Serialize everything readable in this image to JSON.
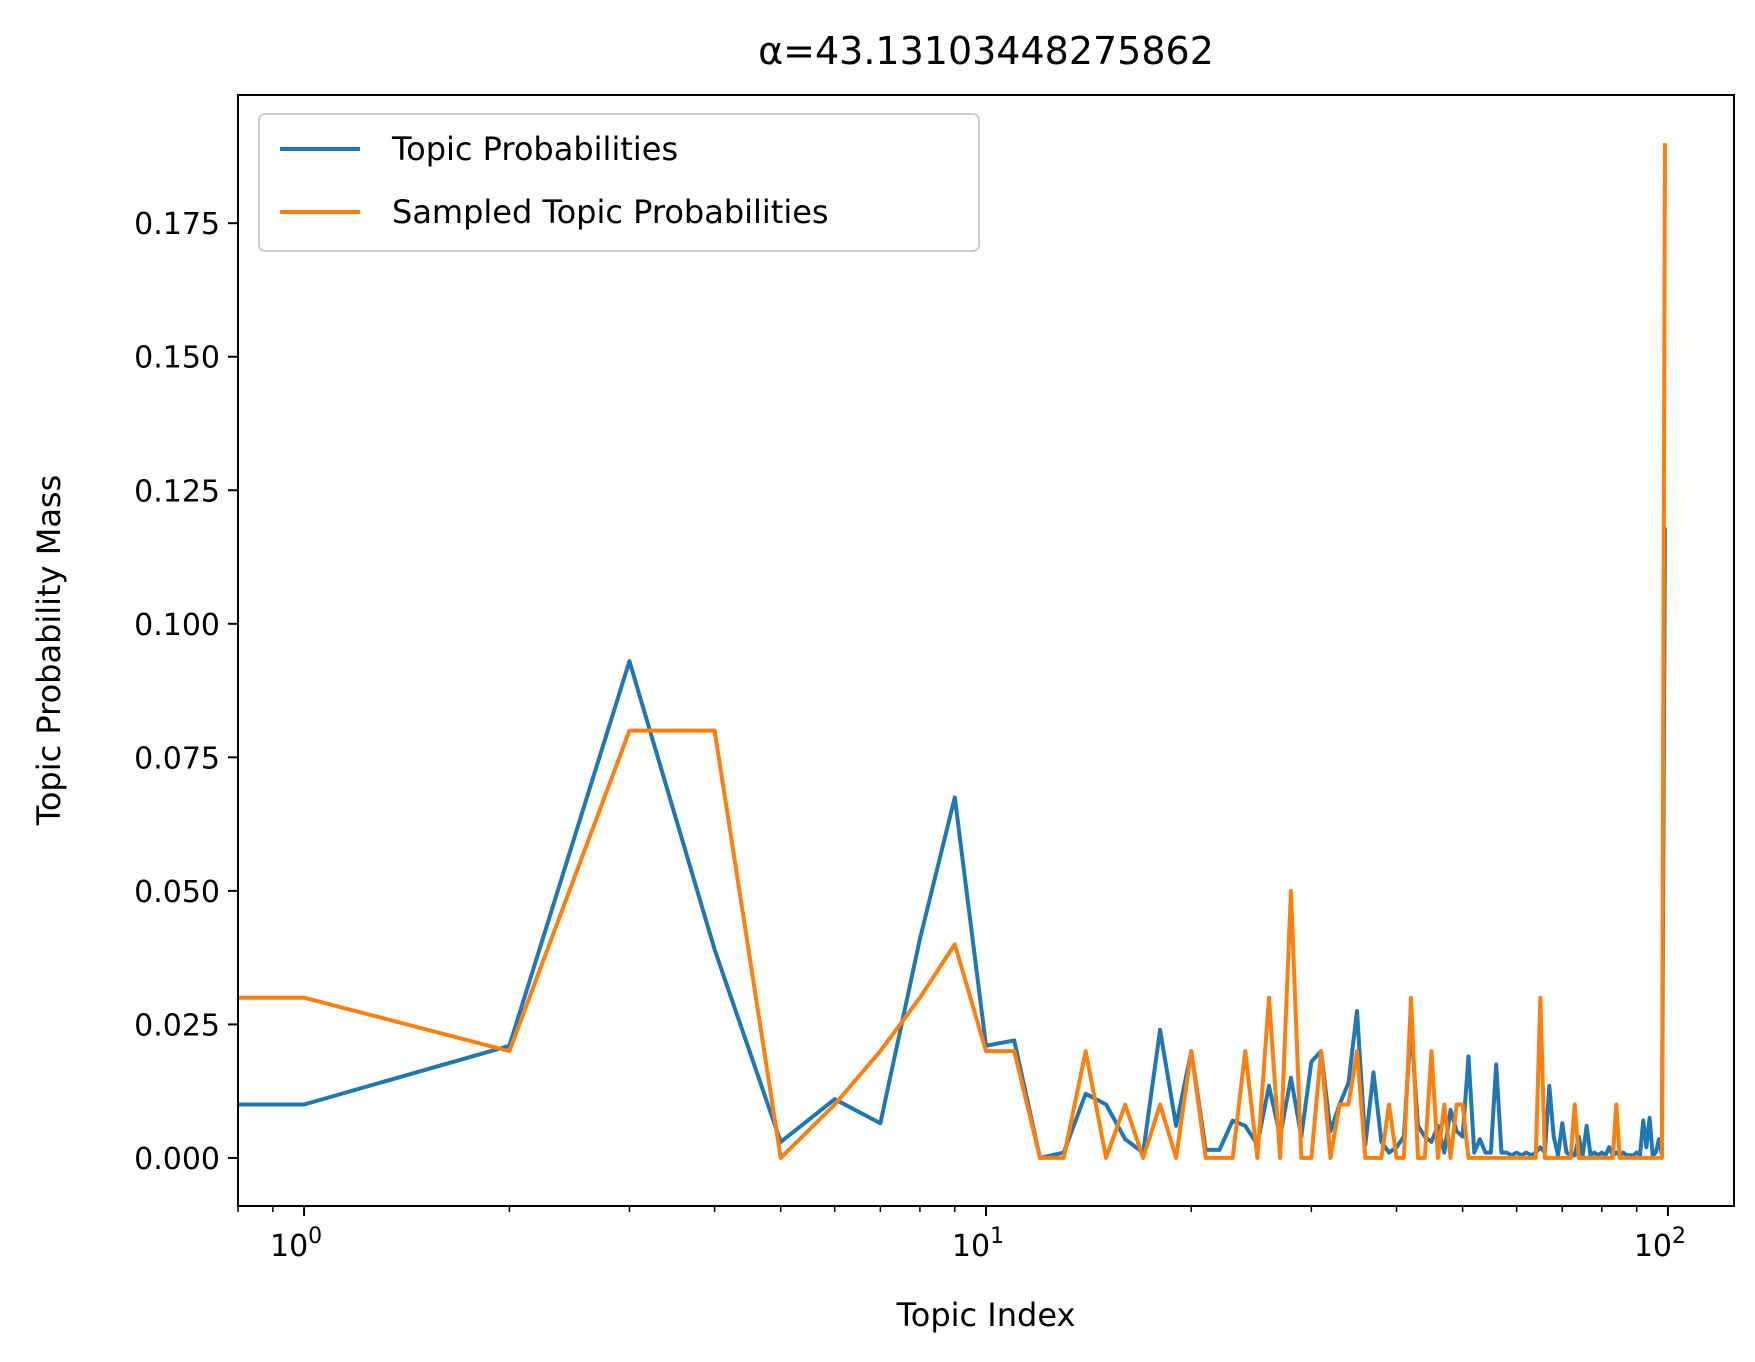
{
  "chart_data": {
    "type": "line",
    "title": "α=43.13103448275862",
    "xlabel": "Topic Index",
    "ylabel": "Topic Probability Mass",
    "xscale": "log",
    "xlim": [
      0.8,
      125
    ],
    "ylim": [
      -0.009,
      0.199
    ],
    "grid": false,
    "legend_position": "top-left",
    "yticks": [
      {
        "value": 0.0,
        "label": "0.000"
      },
      {
        "value": 0.025,
        "label": "0.025"
      },
      {
        "value": 0.05,
        "label": "0.050"
      },
      {
        "value": 0.075,
        "label": "0.075"
      },
      {
        "value": 0.1,
        "label": "0.100"
      },
      {
        "value": 0.125,
        "label": "0.125"
      },
      {
        "value": 0.15,
        "label": "0.150"
      },
      {
        "value": 0.175,
        "label": "0.175"
      }
    ],
    "xticks": [
      {
        "value": 1,
        "base": "10",
        "exp": "0"
      },
      {
        "value": 10,
        "base": "10",
        "exp": "1"
      },
      {
        "value": 100,
        "base": "10",
        "exp": "2"
      }
    ],
    "x": [
      0,
      1,
      2,
      3,
      4,
      5,
      6,
      7,
      8,
      9,
      10,
      11,
      12,
      13,
      14,
      15,
      16,
      17,
      18,
      19,
      20,
      21,
      22,
      23,
      24,
      25,
      26,
      27,
      28,
      29,
      30,
      31,
      32,
      33,
      34,
      35,
      36,
      37,
      38,
      39,
      40,
      41,
      42,
      43,
      44,
      45,
      46,
      47,
      48,
      49,
      50,
      51,
      52,
      53,
      54,
      55,
      56,
      57,
      58,
      59,
      60,
      61,
      62,
      63,
      64,
      65,
      66,
      67,
      68,
      69,
      70,
      71,
      72,
      73,
      74,
      75,
      76,
      77,
      78,
      79,
      80,
      81,
      82,
      83,
      84,
      85,
      86,
      87,
      88,
      89,
      90,
      91,
      92,
      93,
      94,
      95,
      96,
      97,
      98,
      99
    ],
    "series": [
      {
        "name": "Topic Probabilities",
        "color": "#1f77b4",
        "values": [
          0.01,
          0.01,
          0.021,
          0.093,
          0.039,
          0.003,
          0.011,
          0.0065,
          0.041,
          0.0675,
          0.021,
          0.022,
          0.0,
          0.001,
          0.012,
          0.01,
          0.0035,
          0.001,
          0.024,
          0.006,
          0.02,
          0.0015,
          0.0015,
          0.007,
          0.006,
          0.0025,
          0.0135,
          0.004,
          0.015,
          0.004,
          0.018,
          0.02,
          0.005,
          0.01,
          0.014,
          0.0275,
          0.0025,
          0.016,
          0.003,
          0.001,
          0.002,
          0.004,
          0.025,
          0.006,
          0.004,
          0.003,
          0.006,
          0.001,
          0.009,
          0.005,
          0.004,
          0.019,
          0.001,
          0.0035,
          0.001,
          0.001,
          0.0175,
          0.001,
          0.001,
          0.0005,
          0.001,
          0.0005,
          0.001,
          0.0005,
          0.001,
          0.002,
          0.001,
          0.0135,
          0.004,
          0.0005,
          0.0065,
          0.001,
          0.0005,
          0.0005,
          0.004,
          0.0005,
          0.006,
          0.0005,
          0.001,
          0.0005,
          0.001,
          0.0005,
          0.002,
          0.0005,
          0.001,
          0.0005,
          0.001,
          0.0005,
          0.0005,
          0.0005,
          0.001,
          0.0005,
          0.007,
          0.002,
          0.0075,
          0.0005,
          0.001,
          0.0035,
          0.0005,
          0.118
        ]
      },
      {
        "name": "Sampled Topic Probabilities",
        "color": "#ff7f0e",
        "values": [
          0.03,
          0.03,
          0.02,
          0.08,
          0.08,
          0.0,
          0.01,
          0.02,
          0.03,
          0.04,
          0.02,
          0.02,
          0.0,
          0.0,
          0.02,
          0.0,
          0.01,
          0.0,
          0.01,
          0.0,
          0.02,
          0.0,
          0.0,
          0.0,
          0.02,
          0.0,
          0.03,
          0.0,
          0.05,
          0.0,
          0.0,
          0.02,
          0.0,
          0.01,
          0.01,
          0.02,
          0.0,
          0.0,
          0.0,
          0.01,
          0.0,
          0.0,
          0.03,
          0.0,
          0.0,
          0.02,
          0.0,
          0.01,
          0.0,
          0.01,
          0.01,
          0.0,
          0.0,
          0.0,
          0.0,
          0.0,
          0.0,
          0.0,
          0.0,
          0.0,
          0.0,
          0.0,
          0.0,
          0.0,
          0.0,
          0.03,
          0.0,
          0.0,
          0.0,
          0.0,
          0.0,
          0.0,
          0.0,
          0.01,
          0.0,
          0.0,
          0.0,
          0.0,
          0.0,
          0.0,
          0.0,
          0.0,
          0.0,
          0.0,
          0.01,
          0.0,
          0.0,
          0.0,
          0.0,
          0.0,
          0.0,
          0.0,
          0.0,
          0.0,
          0.0,
          0.0,
          0.0,
          0.0,
          0.0,
          0.19
        ]
      }
    ]
  }
}
